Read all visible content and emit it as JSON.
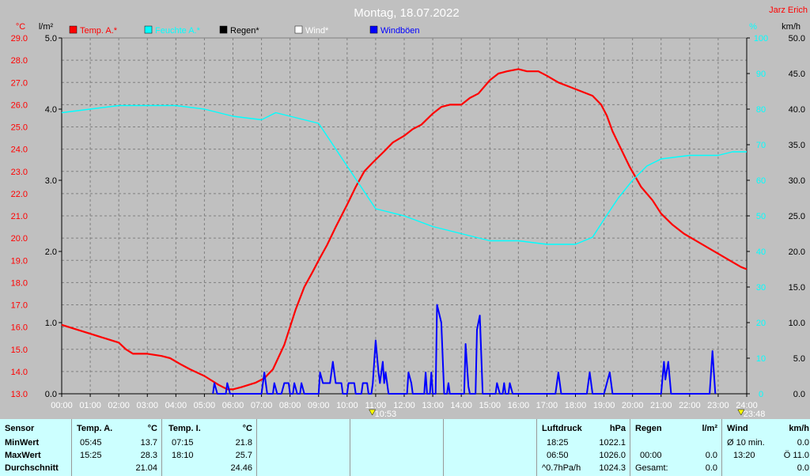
{
  "chart_data": {
    "type": "line",
    "title": "Montag, 18.07.2022",
    "corner_label": "Jarz Erich",
    "x_ticks": [
      "00:00",
      "01:00",
      "02:00",
      "03:00",
      "04:00",
      "05:00",
      "06:00",
      "07:00",
      "08:00",
      "09:00",
      "10:00",
      "11:00",
      "12:00",
      "13:00",
      "14:00",
      "15:00",
      "16:00",
      "17:00",
      "18:00",
      "19:00",
      "20:00",
      "21:00",
      "22:00",
      "23:00",
      "24:00"
    ],
    "xlim": [
      0,
      24
    ],
    "axes": {
      "temp": {
        "unit": "°C",
        "range": [
          13,
          29
        ],
        "ticks": [
          "13.0",
          "14.0",
          "15.0",
          "16.0",
          "17.0",
          "18.0",
          "19.0",
          "20.0",
          "21.0",
          "22.0",
          "23.0",
          "24.0",
          "25.0",
          "26.0",
          "27.0",
          "28.0",
          "29.0"
        ],
        "color": "#ff0000"
      },
      "rain": {
        "unit": "l/m²",
        "range": [
          0,
          5
        ],
        "ticks": [
          "0.0",
          "1.0",
          "2.0",
          "3.0",
          "4.0",
          "5.0"
        ],
        "color": "#000000"
      },
      "humidity": {
        "unit": "%",
        "range": [
          0,
          100
        ],
        "ticks": [
          "0",
          "10",
          "20",
          "30",
          "40",
          "50",
          "60",
          "70",
          "80",
          "90",
          "100"
        ],
        "color": "#00ffff"
      },
      "wind": {
        "unit": "km/h",
        "range": [
          0,
          50
        ],
        "ticks": [
          "0.0",
          "5.0",
          "10.0",
          "15.0",
          "20.0",
          "25.0",
          "30.0",
          "35.0",
          "40.0",
          "45.0",
          "50.0"
        ],
        "color": "#000000"
      }
    },
    "legend": [
      {
        "label": "Temp. A.*",
        "color": "#ff0000"
      },
      {
        "label": "Feuchte A.*",
        "color": "#00ffff"
      },
      {
        "label": "Regen*",
        "color": "#000000"
      },
      {
        "label": "Wind*",
        "color": "#ffffff"
      },
      {
        "label": "Windböen",
        "color": "#0000ff"
      }
    ],
    "series": [
      {
        "name": "Temp. A.*",
        "axis": "temp",
        "color": "#ff0000",
        "points": [
          [
            0,
            16.1
          ],
          [
            0.5,
            15.9
          ],
          [
            1,
            15.7
          ],
          [
            1.5,
            15.5
          ],
          [
            2,
            15.3
          ],
          [
            2.25,
            15.0
          ],
          [
            2.5,
            14.8
          ],
          [
            3,
            14.8
          ],
          [
            3.5,
            14.7
          ],
          [
            3.8,
            14.6
          ],
          [
            4.2,
            14.3
          ],
          [
            4.5,
            14.1
          ],
          [
            5,
            13.8
          ],
          [
            5.5,
            13.4
          ],
          [
            5.8,
            13.2
          ],
          [
            6,
            13.2
          ],
          [
            6.3,
            13.3
          ],
          [
            6.8,
            13.5
          ],
          [
            7.1,
            13.7
          ],
          [
            7.4,
            14.1
          ],
          [
            7.8,
            15.2
          ],
          [
            8.2,
            16.8
          ],
          [
            8.5,
            17.8
          ],
          [
            8.8,
            18.5
          ],
          [
            9.0,
            19.0
          ],
          [
            9.3,
            19.7
          ],
          [
            9.6,
            20.5
          ],
          [
            10.0,
            21.5
          ],
          [
            10.3,
            22.3
          ],
          [
            10.6,
            23.0
          ],
          [
            10.9,
            23.4
          ],
          [
            11.3,
            23.9
          ],
          [
            11.6,
            24.3
          ],
          [
            12.0,
            24.6
          ],
          [
            12.3,
            24.9
          ],
          [
            12.6,
            25.1
          ],
          [
            13.0,
            25.6
          ],
          [
            13.3,
            25.9
          ],
          [
            13.6,
            26.0
          ],
          [
            14.0,
            26.0
          ],
          [
            14.3,
            26.3
          ],
          [
            14.6,
            26.5
          ],
          [
            15.0,
            27.1
          ],
          [
            15.3,
            27.4
          ],
          [
            15.6,
            27.5
          ],
          [
            16.0,
            27.6
          ],
          [
            16.3,
            27.5
          ],
          [
            16.7,
            27.5
          ],
          [
            17.0,
            27.3
          ],
          [
            17.4,
            27.0
          ],
          [
            17.8,
            26.8
          ],
          [
            18.2,
            26.6
          ],
          [
            18.6,
            26.4
          ],
          [
            18.9,
            26.0
          ],
          [
            19.1,
            25.5
          ],
          [
            19.3,
            24.8
          ],
          [
            19.6,
            24.0
          ],
          [
            19.9,
            23.2
          ],
          [
            20.3,
            22.3
          ],
          [
            20.7,
            21.7
          ],
          [
            21.0,
            21.1
          ],
          [
            21.4,
            20.6
          ],
          [
            21.8,
            20.2
          ],
          [
            22.2,
            19.9
          ],
          [
            22.6,
            19.6
          ],
          [
            23.0,
            19.3
          ],
          [
            23.4,
            19.0
          ],
          [
            23.8,
            18.7
          ],
          [
            24,
            18.6
          ]
        ]
      },
      {
        "name": "Feuchte A.*",
        "axis": "humidity",
        "color": "#00ffff",
        "points": [
          [
            0,
            79
          ],
          [
            1,
            80
          ],
          [
            2,
            81
          ],
          [
            3,
            81
          ],
          [
            4,
            81
          ],
          [
            5,
            80
          ],
          [
            6,
            78
          ],
          [
            7,
            77
          ],
          [
            7.5,
            79
          ],
          [
            8,
            78
          ],
          [
            9,
            76
          ],
          [
            9.5,
            70
          ],
          [
            10,
            64
          ],
          [
            10.5,
            58
          ],
          [
            11,
            52
          ],
          [
            12,
            50
          ],
          [
            13,
            47
          ],
          [
            14,
            45
          ],
          [
            15,
            43
          ],
          [
            16,
            43
          ],
          [
            17,
            42
          ],
          [
            18,
            42
          ],
          [
            18.6,
            44
          ],
          [
            19,
            49
          ],
          [
            19.5,
            55
          ],
          [
            20,
            60
          ],
          [
            20.5,
            64
          ],
          [
            21,
            66
          ],
          [
            22,
            67
          ],
          [
            23,
            67
          ],
          [
            23.5,
            68
          ],
          [
            24,
            68
          ]
        ]
      },
      {
        "name": "Windböen",
        "axis": "wind",
        "color": "#0000ff",
        "points": [
          [
            5.3,
            0
          ],
          [
            5.35,
            1.5
          ],
          [
            5.45,
            0
          ],
          [
            5.75,
            0
          ],
          [
            5.8,
            1.5
          ],
          [
            5.9,
            0
          ],
          [
            7.0,
            0
          ],
          [
            7.1,
            3
          ],
          [
            7.2,
            0
          ],
          [
            7.4,
            0
          ],
          [
            7.45,
            1.5
          ],
          [
            7.55,
            0
          ],
          [
            7.7,
            0
          ],
          [
            7.8,
            1.5
          ],
          [
            7.95,
            1.5
          ],
          [
            8.0,
            0
          ],
          [
            8.1,
            0
          ],
          [
            8.15,
            1.5
          ],
          [
            8.25,
            0
          ],
          [
            8.35,
            0
          ],
          [
            8.4,
            1.5
          ],
          [
            8.5,
            0
          ],
          [
            9.0,
            0
          ],
          [
            9.05,
            3
          ],
          [
            9.15,
            1.5
          ],
          [
            9.4,
            1.5
          ],
          [
            9.5,
            4.5
          ],
          [
            9.6,
            1.5
          ],
          [
            9.8,
            1.5
          ],
          [
            9.85,
            0
          ],
          [
            10.0,
            0
          ],
          [
            10.05,
            1.5
          ],
          [
            10.25,
            1.5
          ],
          [
            10.3,
            0
          ],
          [
            10.5,
            0
          ],
          [
            10.55,
            1.5
          ],
          [
            10.7,
            1.5
          ],
          [
            10.75,
            0
          ],
          [
            10.85,
            0
          ],
          [
            10.9,
            1.5
          ],
          [
            11.0,
            7.5
          ],
          [
            11.1,
            3
          ],
          [
            11.15,
            1.5
          ],
          [
            11.25,
            4.5
          ],
          [
            11.3,
            1.5
          ],
          [
            11.35,
            3
          ],
          [
            11.45,
            0
          ],
          [
            12.1,
            0
          ],
          [
            12.15,
            3
          ],
          [
            12.25,
            1.5
          ],
          [
            12.3,
            0
          ],
          [
            12.7,
            0
          ],
          [
            12.75,
            3
          ],
          [
            12.8,
            0
          ],
          [
            12.9,
            0
          ],
          [
            12.95,
            3
          ],
          [
            13.0,
            0
          ],
          [
            13.1,
            0
          ],
          [
            13.15,
            12.5
          ],
          [
            13.3,
            10
          ],
          [
            13.4,
            0
          ],
          [
            13.5,
            0
          ],
          [
            13.55,
            1.5
          ],
          [
            13.6,
            0
          ],
          [
            14.1,
            0
          ],
          [
            14.15,
            7
          ],
          [
            14.25,
            1
          ],
          [
            14.3,
            0
          ],
          [
            14.5,
            0
          ],
          [
            14.55,
            9
          ],
          [
            14.65,
            11
          ],
          [
            14.75,
            0
          ],
          [
            15.2,
            0
          ],
          [
            15.25,
            1.5
          ],
          [
            15.35,
            0
          ],
          [
            15.45,
            0
          ],
          [
            15.5,
            1.5
          ],
          [
            15.55,
            0
          ],
          [
            15.65,
            0
          ],
          [
            15.7,
            1.5
          ],
          [
            15.8,
            0
          ],
          [
            17.3,
            0
          ],
          [
            17.4,
            3
          ],
          [
            17.5,
            0
          ],
          [
            18.4,
            0
          ],
          [
            18.5,
            3
          ],
          [
            18.6,
            0
          ],
          [
            19.0,
            0
          ],
          [
            19.1,
            1.5
          ],
          [
            19.2,
            3
          ],
          [
            19.3,
            0
          ],
          [
            21.0,
            0
          ],
          [
            21.1,
            4.5
          ],
          [
            21.15,
            2
          ],
          [
            21.25,
            4.5
          ],
          [
            21.35,
            0
          ],
          [
            22.7,
            0
          ],
          [
            22.8,
            6
          ],
          [
            22.9,
            0
          ]
        ]
      }
    ],
    "markers": [
      {
        "x": 10.88,
        "label": "10:53"
      },
      {
        "x": 23.8,
        "label": "23:48"
      }
    ]
  },
  "stats": {
    "sensor": {
      "header": "Sensor",
      "rows": [
        "MinWert",
        "MaxWert",
        "Durchschnitt"
      ]
    },
    "temp_a": {
      "header": "Temp. A.",
      "unit": "°C",
      "rows": [
        [
          "05:45",
          "13.7"
        ],
        [
          "15:25",
          "28.3"
        ],
        [
          "",
          "21.04"
        ]
      ]
    },
    "temp_i": {
      "header": "Temp. I.",
      "unit": "°C",
      "rows": [
        [
          "07:15",
          "21.8"
        ],
        [
          "18:10",
          "25.7"
        ],
        [
          "",
          "24.46"
        ]
      ]
    },
    "pressure": {
      "header": "Luftdruck",
      "unit": "hPa",
      "rows": [
        [
          "18:25",
          "1022.1"
        ],
        [
          "06:50",
          "1026.0"
        ],
        [
          "^0.7hPa/h",
          "1024.3"
        ]
      ]
    },
    "rain": {
      "header": "Regen",
      "unit": "l/m²",
      "rows": [
        [
          "",
          ""
        ],
        [
          "00:00",
          "0.0"
        ],
        [
          "Gesamt:",
          "0.0"
        ]
      ]
    },
    "wind": {
      "header": "Wind",
      "unit": "km/h",
      "rows": [
        [
          "Ø 10 min.",
          "0.0"
        ],
        [
          "13:20",
          "Ö 11.0"
        ],
        [
          "",
          "0.0"
        ]
      ]
    }
  }
}
